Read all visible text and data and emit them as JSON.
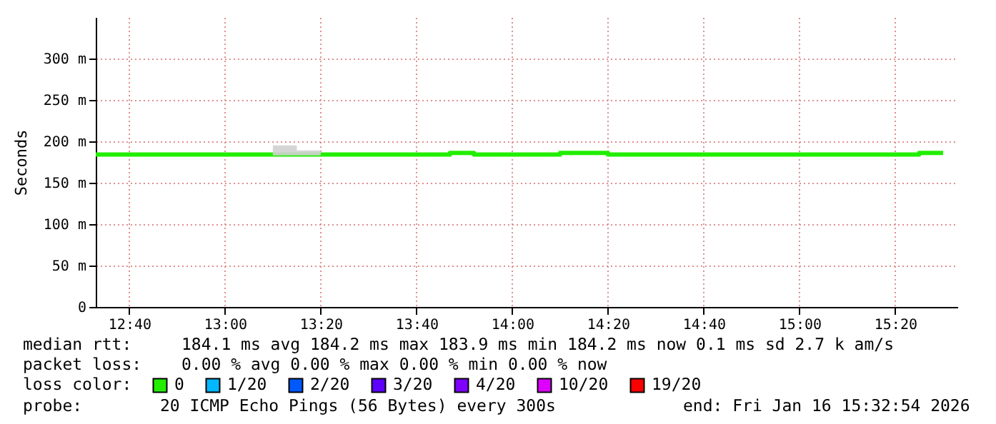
{
  "chart_data": {
    "type": "step",
    "ylabel": "Seconds",
    "x": [
      12.55,
      13.1667,
      13.25,
      13.3333,
      13.7833,
      13.8667,
      14.1667,
      14.3333,
      15.4167,
      15.5
    ],
    "series": [
      {
        "name": "0",
        "color": "#22ee00",
        "values": [
          184,
          184,
          184,
          184,
          186,
          184,
          186,
          184,
          186,
          186
        ],
        "lower": [
          null,
          183,
          183,
          184,
          null,
          null,
          null,
          null,
          null,
          null
        ],
        "upper": [
          null,
          195,
          189,
          184,
          null,
          null,
          null,
          null,
          null,
          null
        ]
      },
      {
        "name": "1/20",
        "color": "#00b8ff",
        "values": [
          null,
          null,
          null,
          null,
          null,
          null,
          null,
          null,
          null,
          null
        ]
      },
      {
        "name": "2/20",
        "color": "#0059ff",
        "values": [
          null,
          null,
          null,
          null,
          null,
          null,
          null,
          null,
          null,
          null
        ]
      },
      {
        "name": "3/20",
        "color": "#5e00ff",
        "values": [
          null,
          null,
          null,
          null,
          null,
          null,
          null,
          null,
          null,
          null
        ]
      },
      {
        "name": "4/20",
        "color": "#7e00ff",
        "values": [
          null,
          null,
          null,
          null,
          null,
          null,
          null,
          null,
          null,
          null
        ]
      },
      {
        "name": "10/20",
        "color": "#dd00ff",
        "values": [
          null,
          null,
          null,
          null,
          null,
          null,
          null,
          null,
          null,
          null
        ]
      },
      {
        "name": "19/20",
        "color": "#ff0000",
        "values": [
          null,
          null,
          null,
          null,
          null,
          null,
          null,
          null,
          null,
          null
        ]
      }
    ],
    "legend_title": "loss color:",
    "legend": "bottom",
    "xlim": [
      12.55,
      15.55
    ],
    "xticks": [
      {
        "value": 12.6667,
        "label": "12:40"
      },
      {
        "value": 13.0,
        "label": "13:00"
      },
      {
        "value": 13.3333,
        "label": "13:20"
      },
      {
        "value": 13.6667,
        "label": "13:40"
      },
      {
        "value": 14.0,
        "label": "14:00"
      },
      {
        "value": 14.3333,
        "label": "14:20"
      },
      {
        "value": 14.6667,
        "label": "14:40"
      },
      {
        "value": 15.0,
        "label": "15:00"
      },
      {
        "value": 15.3333,
        "label": "15:20"
      }
    ],
    "ylim": [
      0,
      350
    ],
    "yticks": [
      0,
      {
        "value": 50,
        "label": "50 m"
      },
      {
        "value": 100,
        "label": "100 m"
      },
      {
        "value": 150,
        "label": "150 m"
      },
      {
        "value": 200,
        "label": "200 m"
      },
      {
        "value": 250,
        "label": "250 m"
      },
      {
        "value": 300,
        "label": "300 m"
      }
    ],
    "grid": true,
    "annotations": [
      "median rtt:",
      "184.1 ms avg  184.2 ms max  183.9 ms min  184.2 ms now  0.1 ms sd  2.7 k am/s",
      "packet loss:",
      "0.00 % avg  0.00 % max  0.00 % min  0.00 % now",
      "probe:",
      "20 ICMP Echo Pings (56 Bytes) every 300s",
      "end: Fri Jan 16 15:32:54 2026"
    ]
  }
}
